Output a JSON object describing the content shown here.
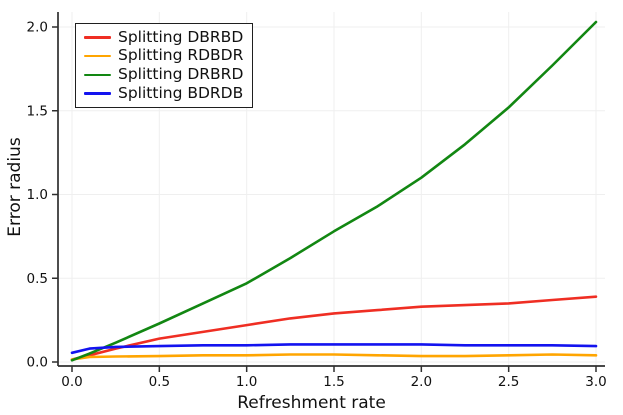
{
  "chart_data": {
    "type": "line",
    "title": "",
    "xlabel": "Refreshment rate",
    "ylabel": "Error radius",
    "xlim": [
      -0.04,
      3.05
    ],
    "ylim": [
      0,
      2.05
    ],
    "xticks": [
      0.0,
      0.5,
      1.0,
      1.5,
      2.0,
      2.5,
      3.0
    ],
    "xtick_labels": [
      "0.0",
      "0.5",
      "1.0",
      "1.5",
      "2.0",
      "2.5",
      "3.0"
    ],
    "yticks": [
      0.0,
      0.5,
      1.0,
      1.5,
      2.0
    ],
    "ytick_labels": [
      "0.0",
      "0.5",
      "1.0",
      "1.5",
      "2.0"
    ],
    "grid": true,
    "legend_position": "top-left",
    "x": [
      0.0,
      0.1,
      0.25,
      0.5,
      0.75,
      1.0,
      1.25,
      1.5,
      1.75,
      2.0,
      2.25,
      2.5,
      2.75,
      3.0
    ],
    "series": [
      {
        "name": "Splitting DBRBD",
        "color": "#ef2e23",
        "values": [
          0.015,
          0.04,
          0.08,
          0.14,
          0.18,
          0.22,
          0.26,
          0.29,
          0.31,
          0.33,
          0.34,
          0.35,
          0.37,
          0.39
        ]
      },
      {
        "name": "Splitting RDBDR",
        "color": "#ffa500",
        "values": [
          0.015,
          0.03,
          0.033,
          0.035,
          0.04,
          0.04,
          0.045,
          0.045,
          0.04,
          0.035,
          0.035,
          0.04,
          0.045,
          0.04
        ]
      },
      {
        "name": "Splitting DRBRD",
        "color": "#128712",
        "values": [
          0.01,
          0.05,
          0.115,
          0.23,
          0.35,
          0.47,
          0.62,
          0.78,
          0.93,
          1.1,
          1.3,
          1.52,
          1.77,
          2.03
        ]
      },
      {
        "name": "Splitting BDRDB",
        "color": "#1313ef",
        "values": [
          0.055,
          0.08,
          0.09,
          0.095,
          0.1,
          0.1,
          0.105,
          0.105,
          0.105,
          0.105,
          0.1,
          0.1,
          0.1,
          0.095
        ]
      }
    ],
    "style": {
      "spine_color": "#2f2f2f",
      "grid_color": "#efefef",
      "tick_text_color": "#111111",
      "line_width": 2.6
    }
  }
}
